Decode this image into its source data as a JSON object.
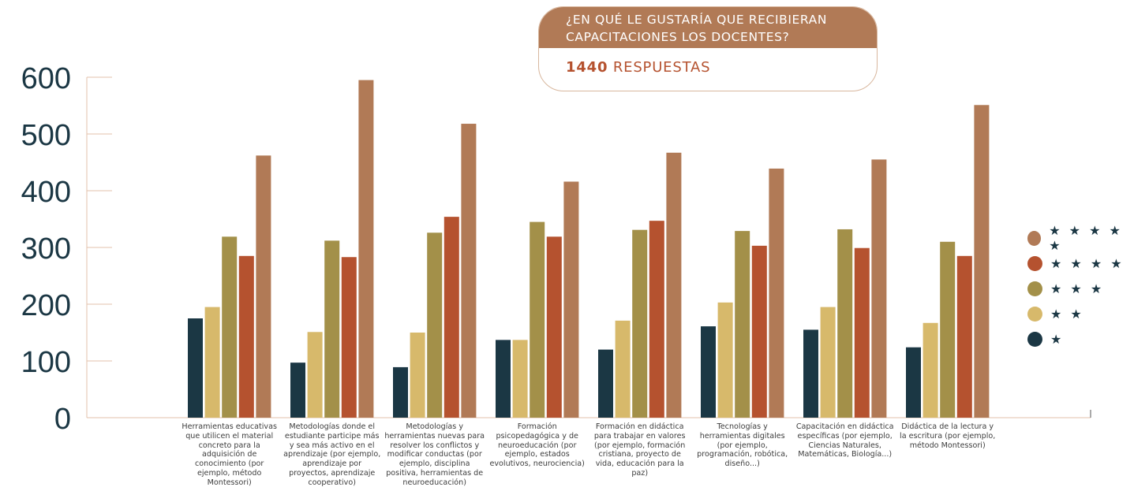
{
  "chart_data": {
    "type": "bar",
    "title": "¿En qué le gustaría que recibieran capacitaciones los docentes?",
    "subtitle_value": "1440",
    "subtitle_label": "respuestas",
    "ylim": [
      0,
      600
    ],
    "yticks": [
      "0",
      "100",
      "200",
      "300",
      "400",
      "500",
      "600"
    ],
    "categories": [
      "Herramientas educativas que utilicen el material concreto para la adquisición de conocimiento (por ejemplo, método Montessori)",
      "Metodologías donde el estudiante participe más y sea más activo en el aprendizaje (por ejemplo, aprendizaje por proyectos, aprendizaje cooperativo)",
      "Metodologías y herramientas nuevas para resolver los conflictos y modificar conductas (por ejemplo, disciplina positiva, herramientas de neuroeducación)",
      "Formación psicopedagógica y de neuroeducación (por ejemplo, estados evolutivos, neurociencia)",
      "Formación en didáctica para trabajar en valores (por ejemplo, formación cristiana, proyecto de vida, educación para la paz)",
      "Tecnologías y herramientas digitales (por ejemplo, programación, robótica, diseño...)",
      "Capacitación en didáctica específicas (por ejemplo, Ciencias Naturales, Matemáticas, Biología...)",
      "Didáctica de la lectura y la escritura (por ejemplo, método Montessori)"
    ],
    "series": [
      {
        "name": "★",
        "color": "#1b3744",
        "values": [
          175,
          97,
          89,
          137,
          120,
          161,
          155,
          124
        ]
      },
      {
        "name": "★ ★",
        "color": "#d7b96b",
        "values": [
          195,
          151,
          150,
          137,
          171,
          203,
          195,
          167
        ]
      },
      {
        "name": "★ ★ ★",
        "color": "#a39049",
        "values": [
          319,
          312,
          326,
          345,
          331,
          329,
          332,
          310
        ]
      },
      {
        "name": "★ ★ ★ ★",
        "color": "#b5522f",
        "values": [
          285,
          283,
          354,
          319,
          347,
          303,
          299,
          285
        ]
      },
      {
        "name": "★ ★ ★ ★ ★",
        "color": "#b17a56",
        "values": [
          462,
          595,
          518,
          416,
          467,
          439,
          455,
          551
        ]
      }
    ],
    "legend": {
      "placement": "right",
      "entries": [
        "★ ★ ★ ★ ★",
        "★ ★ ★ ★",
        "★ ★ ★",
        "★ ★",
        "★"
      ]
    },
    "grid": false
  }
}
